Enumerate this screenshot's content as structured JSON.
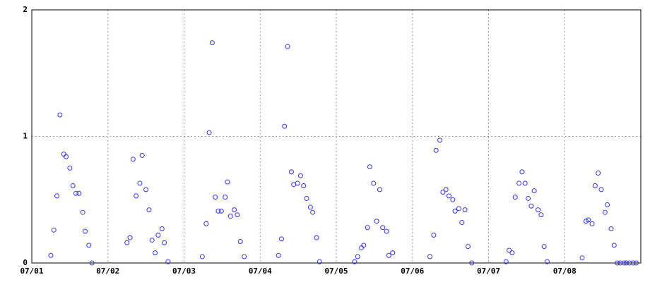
{
  "chart_data": {
    "type": "scatter",
    "color": "#3333ee",
    "grid": true,
    "xlim": [
      0,
      8
    ],
    "xticks": [
      {
        "value": 0,
        "label": "07/01"
      },
      {
        "value": 1,
        "label": "07/02"
      },
      {
        "value": 2,
        "label": "07/03"
      },
      {
        "value": 3,
        "label": "07/04"
      },
      {
        "value": 4,
        "label": "07/05"
      },
      {
        "value": 5,
        "label": "07/06"
      },
      {
        "value": 6,
        "label": "07/07"
      },
      {
        "value": 7,
        "label": "07/08"
      }
    ],
    "ylim": [
      0,
      2
    ],
    "yticks": [
      0,
      1,
      2
    ],
    "x": [
      0.25,
      0.29,
      0.33,
      0.37,
      0.42,
      0.45,
      0.5,
      0.54,
      0.58,
      0.62,
      0.67,
      0.7,
      0.75,
      0.79,
      1.25,
      1.29,
      1.33,
      1.37,
      1.42,
      1.45,
      1.5,
      1.54,
      1.58,
      1.62,
      1.66,
      1.71,
      1.74,
      1.79,
      2.24,
      2.29,
      2.33,
      2.37,
      2.41,
      2.45,
      2.49,
      2.54,
      2.57,
      2.61,
      2.66,
      2.7,
      2.74,
      2.79,
      3.24,
      3.28,
      3.32,
      3.36,
      3.41,
      3.44,
      3.49,
      3.53,
      3.57,
      3.61,
      3.66,
      3.69,
      3.74,
      3.78,
      4.24,
      4.28,
      4.33,
      4.36,
      4.41,
      4.44,
      4.49,
      4.53,
      4.57,
      4.61,
      4.66,
      4.69,
      4.74,
      5.23,
      5.28,
      5.31,
      5.36,
      5.4,
      5.44,
      5.48,
      5.53,
      5.56,
      5.61,
      5.65,
      5.69,
      5.73,
      5.78,
      6.23,
      6.27,
      6.31,
      6.35,
      6.4,
      6.44,
      6.48,
      6.52,
      6.56,
      6.6,
      6.65,
      6.69,
      6.73,
      6.77,
      7.23,
      7.28,
      7.31,
      7.36,
      7.4,
      7.44,
      7.48,
      7.53,
      7.56,
      7.61,
      7.65,
      7.69,
      7.73,
      7.78,
      7.81,
      7.85,
      7.9,
      7.94
    ],
    "values": [
      0.06,
      0.26,
      0.53,
      1.17,
      0.86,
      0.84,
      0.75,
      0.61,
      0.55,
      0.55,
      0.4,
      0.25,
      0.14,
      0,
      0.16,
      0.2,
      0.82,
      0.53,
      0.63,
      0.85,
      0.58,
      0.42,
      0.18,
      0.08,
      0.22,
      0.27,
      0.16,
      0.01,
      0.05,
      0.31,
      1.03,
      1.74,
      0.52,
      0.41,
      0.41,
      0.52,
      0.64,
      0.37,
      0.42,
      0.38,
      0.17,
      0.05,
      0.06,
      0.19,
      1.08,
      1.71,
      0.72,
      0.62,
      0.63,
      0.69,
      0.61,
      0.51,
      0.44,
      0.4,
      0.2,
      0.01,
      0.01,
      0.05,
      0.12,
      0.14,
      0.28,
      0.76,
      0.63,
      0.33,
      0.58,
      0.28,
      0.25,
      0.06,
      0.08,
      0.05,
      0.22,
      0.89,
      0.97,
      0.56,
      0.58,
      0.53,
      0.5,
      0.41,
      0.43,
      0.32,
      0.42,
      0.13,
      0,
      0.01,
      0.1,
      0.08,
      0.52,
      0.63,
      0.72,
      0.63,
      0.51,
      0.45,
      0.57,
      0.42,
      0.38,
      0.13,
      0.01,
      0.04,
      0.33,
      0.34,
      0.31,
      0.61,
      0.71,
      0.58,
      0.4,
      0.46,
      0.27,
      0.14,
      0,
      0,
      0,
      0,
      0,
      0,
      0
    ]
  }
}
